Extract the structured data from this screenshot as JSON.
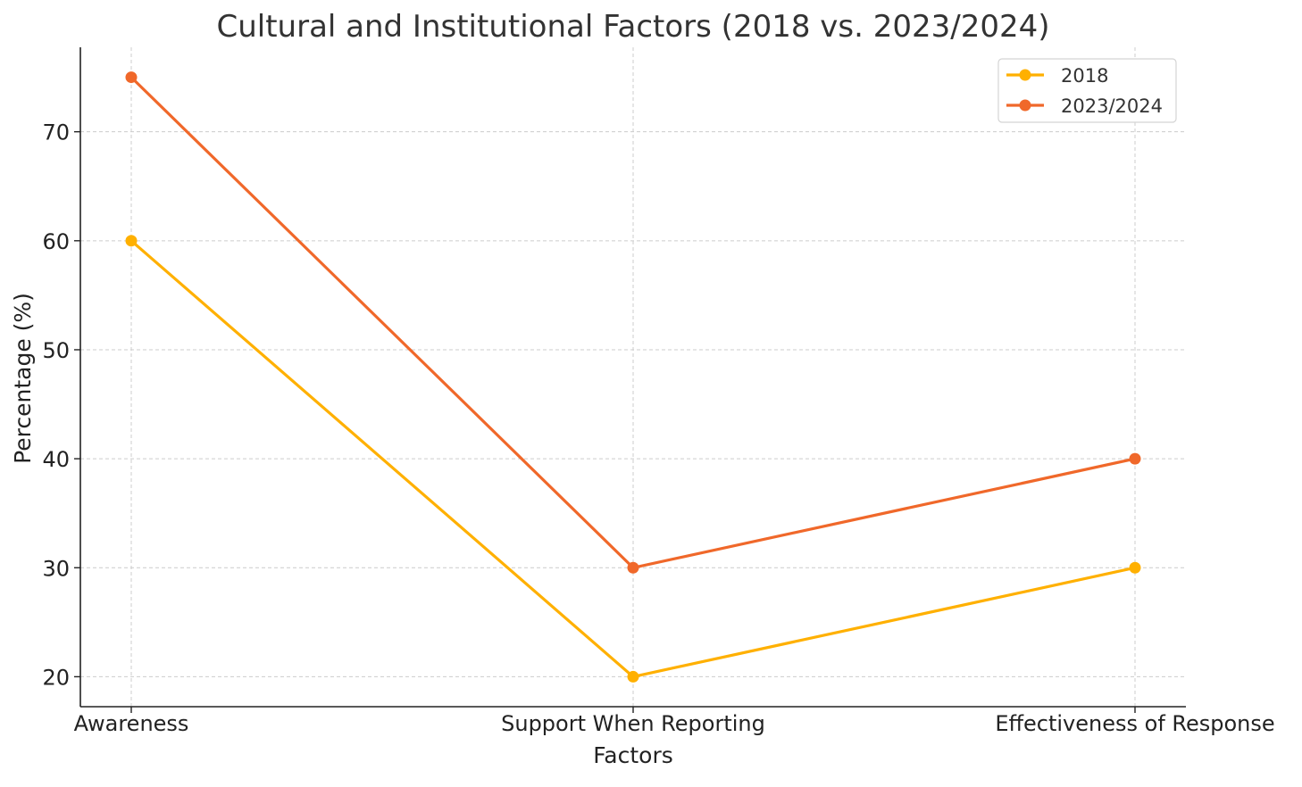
{
  "chart_data": {
    "type": "line",
    "title": "Cultural and Institutional Factors (2018 vs. 2023/2024)",
    "xlabel": "Factors",
    "ylabel": "Percentage (%)",
    "categories": [
      "Awareness",
      "Support When Reporting",
      "Effectiveness of Response"
    ],
    "series": [
      {
        "name": "2018",
        "values": [
          60,
          20,
          30
        ],
        "color": "#FFB000"
      },
      {
        "name": "2023/2024",
        "values": [
          75,
          30,
          40
        ],
        "color": "#F0682A"
      }
    ],
    "ylim": [
      17.25,
      77.75
    ],
    "yticks": [
      20,
      30,
      40,
      50,
      60,
      70
    ],
    "grid": true,
    "legend_position": "top-right"
  }
}
